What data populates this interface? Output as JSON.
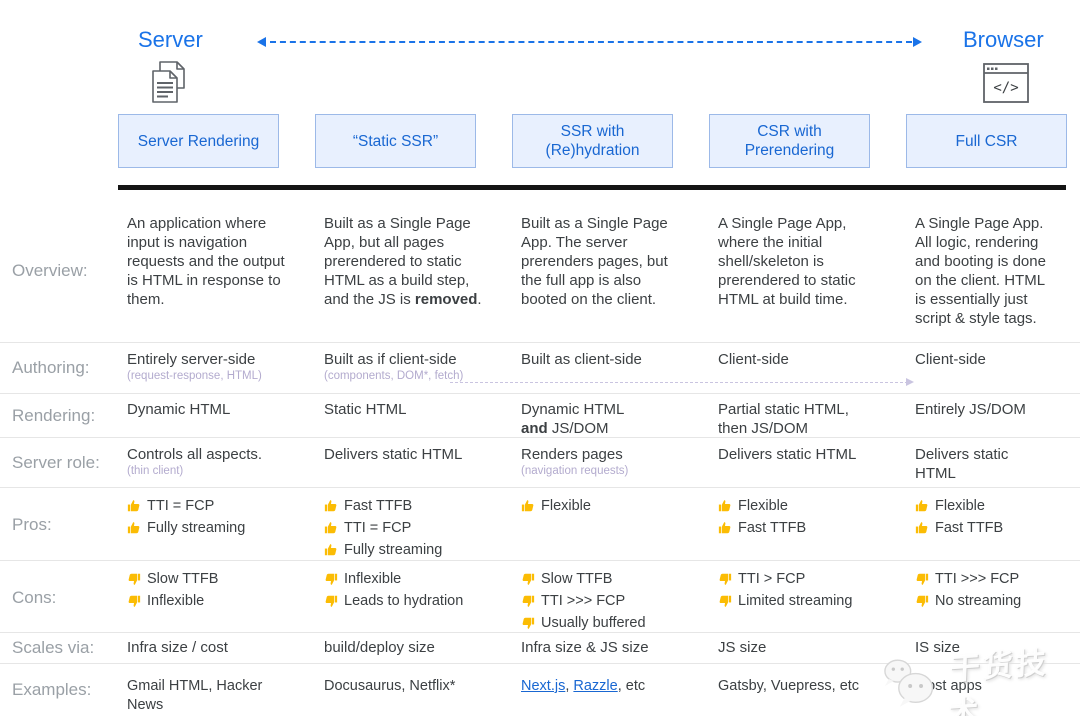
{
  "header": {
    "server_label": "Server",
    "browser_label": "Browser"
  },
  "columns": [
    {
      "key": "server-rendering",
      "title": "Server Rendering"
    },
    {
      "key": "static-ssr",
      "title": "“Static SSR”"
    },
    {
      "key": "ssr-rehydration",
      "title": "SSR with (Re)hydration"
    },
    {
      "key": "csr-prerendering",
      "title": "CSR with Prerendering"
    },
    {
      "key": "full-csr",
      "title": "Full CSR"
    }
  ],
  "table": {
    "rows": [
      {
        "key": "overview",
        "label": "Overview:",
        "cells": [
          {
            "segments": [
              {
                "text": "An application where input is navigation requests and the output is HTML in response to them."
              }
            ]
          },
          {
            "segments": [
              {
                "text": "Built as a Single Page App, but all pages prerendered to static HTML as a build step, and the JS is "
              },
              {
                "text": "removed",
                "bold": true
              },
              {
                "text": "."
              }
            ]
          },
          {
            "segments": [
              {
                "text": "Built as a Single Page App. The server prerenders pages, but the full app is also booted on the client."
              }
            ]
          },
          {
            "segments": [
              {
                "text": "A Single Page App, where the initial shell/skeleton is prerendered to static HTML at build time."
              }
            ]
          },
          {
            "segments": [
              {
                "text": "A Single Page App. All logic, rendering and booting is done on the client. HTML is essentially just script & style tags."
              }
            ]
          }
        ]
      },
      {
        "key": "authoring",
        "label": "Authoring:",
        "cells": [
          {
            "segments": [
              {
                "text": "Entirely server-side"
              }
            ],
            "sub": "(request-response, HTML)"
          },
          {
            "segments": [
              {
                "text": "Built as if client-side"
              }
            ],
            "sub": "(components, DOM*, fetch)"
          },
          {
            "segments": [
              {
                "text": "Built as client-side"
              }
            ]
          },
          {
            "segments": [
              {
                "text": "Client-side"
              }
            ]
          },
          {
            "segments": [
              {
                "text": "Client-side"
              }
            ]
          }
        ]
      },
      {
        "key": "rendering",
        "label": "Rendering:",
        "cells": [
          {
            "segments": [
              {
                "text": "Dynamic HTML"
              }
            ]
          },
          {
            "segments": [
              {
                "text": "Static HTML"
              }
            ]
          },
          {
            "segments": [
              {
                "text": "Dynamic HTML"
              },
              {
                "br": true
              },
              {
                "text": "and",
                "bold": true
              },
              {
                "text": " JS/DOM"
              }
            ]
          },
          {
            "segments": [
              {
                "text": "Partial static HTML, then JS/DOM"
              }
            ]
          },
          {
            "segments": [
              {
                "text": "Entirely JS/DOM"
              }
            ]
          }
        ]
      },
      {
        "key": "server-role",
        "label": "Server role:",
        "cells": [
          {
            "segments": [
              {
                "text": "Controls all aspects."
              }
            ],
            "sub": "(thin client)"
          },
          {
            "segments": [
              {
                "text": "Delivers static HTML"
              }
            ]
          },
          {
            "segments": [
              {
                "text": "Renders pages"
              }
            ],
            "sub": "(navigation requests)"
          },
          {
            "segments": [
              {
                "text": "Delivers static HTML"
              }
            ]
          },
          {
            "segments": [
              {
                "text": "Delivers static HTML"
              }
            ]
          }
        ]
      },
      {
        "key": "pros",
        "label": "Pros:",
        "cells": [
          {
            "list": [
              {
                "icon": "thumb-up",
                "text": "TTI = FCP"
              },
              {
                "icon": "thumb-up",
                "text": "Fully streaming"
              }
            ]
          },
          {
            "list": [
              {
                "icon": "thumb-up",
                "text": "Fast TTFB"
              },
              {
                "icon": "thumb-up",
                "text": "TTI = FCP"
              },
              {
                "icon": "thumb-up",
                "text": "Fully streaming"
              }
            ]
          },
          {
            "list": [
              {
                "icon": "thumb-up",
                "text": "Flexible"
              }
            ]
          },
          {
            "list": [
              {
                "icon": "thumb-up",
                "text": "Flexible"
              },
              {
                "icon": "thumb-up",
                "text": "Fast TTFB"
              }
            ]
          },
          {
            "list": [
              {
                "icon": "thumb-up",
                "text": "Flexible"
              },
              {
                "icon": "thumb-up",
                "text": "Fast TTFB"
              }
            ]
          }
        ]
      },
      {
        "key": "cons",
        "label": "Cons:",
        "cells": [
          {
            "list": [
              {
                "icon": "thumb-down",
                "text": "Slow TTFB"
              },
              {
                "icon": "thumb-down",
                "text": "Inflexible"
              }
            ]
          },
          {
            "list": [
              {
                "icon": "thumb-down",
                "text": "Inflexible"
              },
              {
                "icon": "thumb-down",
                "text": "Leads to hydration"
              }
            ]
          },
          {
            "list": [
              {
                "icon": "thumb-down",
                "text": "Slow TTFB"
              },
              {
                "icon": "thumb-down",
                "text": "TTI >>> FCP"
              },
              {
                "icon": "thumb-down",
                "text": "Usually buffered"
              }
            ]
          },
          {
            "list": [
              {
                "icon": "thumb-down",
                "text": "TTI > FCP"
              },
              {
                "icon": "thumb-down",
                "text": "Limited streaming"
              }
            ]
          },
          {
            "list": [
              {
                "icon": "thumb-down",
                "text": "TTI >>> FCP"
              },
              {
                "icon": "thumb-down",
                "text": "No streaming"
              }
            ]
          }
        ]
      },
      {
        "key": "scales-via",
        "label": "Scales via:",
        "cells": [
          {
            "segments": [
              {
                "text": "Infra size / cost"
              }
            ]
          },
          {
            "segments": [
              {
                "text": "build/deploy size"
              }
            ]
          },
          {
            "segments": [
              {
                "text": "Infra size & JS size"
              }
            ]
          },
          {
            "segments": [
              {
                "text": "JS size"
              }
            ]
          },
          {
            "segments": [
              {
                "text": "IS size"
              }
            ]
          }
        ]
      },
      {
        "key": "examples",
        "label": "Examples:",
        "cells": [
          {
            "segments": [
              {
                "text": "Gmail HTML, Hacker News"
              }
            ]
          },
          {
            "segments": [
              {
                "text": "Docusaurus, Netflix*"
              }
            ]
          },
          {
            "segments": [
              {
                "text": "Next.js",
                "link": true
              },
              {
                "text": ", "
              },
              {
                "text": "Razzle",
                "link": true
              },
              {
                "text": ", etc"
              }
            ]
          },
          {
            "segments": [
              {
                "text": "Gatsby, Vuepress, etc"
              }
            ]
          },
          {
            "segments": [
              {
                "text": "Most apps"
              }
            ]
          }
        ]
      }
    ]
  },
  "watermark": {
    "text": "干货技术",
    "icon": "wechat-icon"
  },
  "colors": {
    "accent_blue": "#1a73e8",
    "header_box_bg": "#e8f0fe",
    "header_box_border": "#9cb9e8",
    "header_text": "#1967d2",
    "body_text": "#3c4043",
    "label_gray": "#9aa0a6",
    "subtext_lavender": "#b3abce",
    "thumb_yellow": "#fbbc04",
    "link_blue": "#1967d2",
    "divider_black": "#141414",
    "separator_gray": "#e6e6e6",
    "authoring_arrow": "#c9c4e0"
  }
}
